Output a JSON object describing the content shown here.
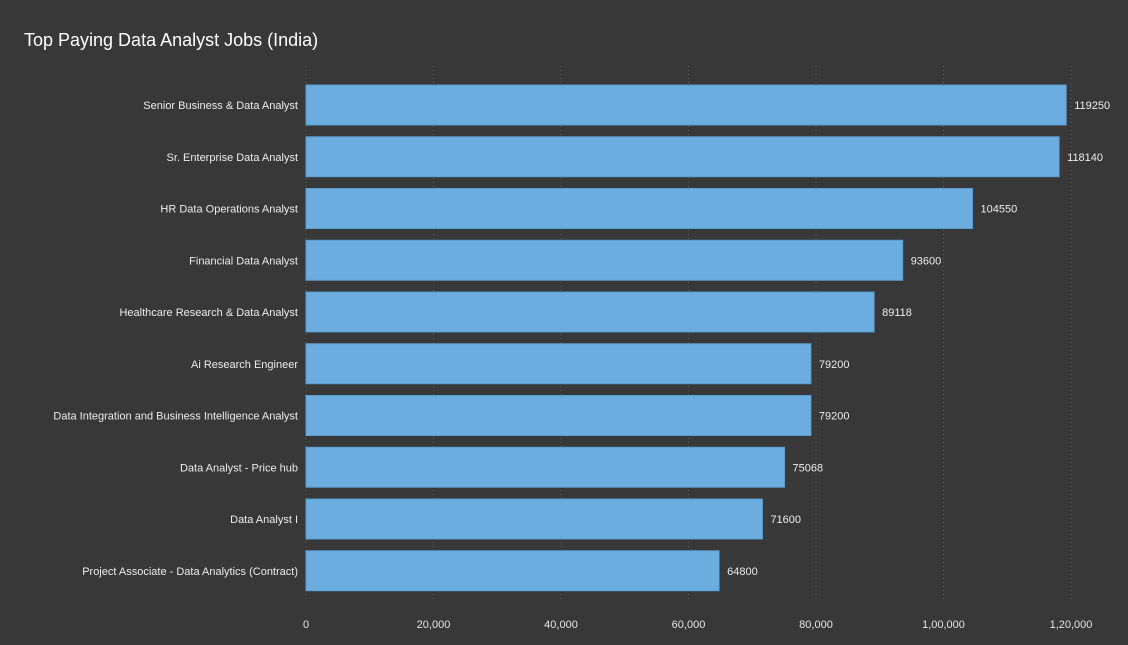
{
  "title": "Top Paying Data Analyst Jobs (India)",
  "colors": {
    "background": "#383838",
    "bar": "#6cade0",
    "bar_stroke": "#5a9bd0",
    "text": "#ececec",
    "inside_label": "#2a2a2a",
    "grid": "#5c5c5c"
  },
  "chart_data": {
    "type": "bar",
    "orientation": "horizontal",
    "title": "Top Paying Data Analyst Jobs (India)",
    "categories": [
      "Senior Business & Data Analyst",
      "Sr. Enterprise Data Analyst",
      "HR Data Operations Analyst",
      "Financial Data Analyst",
      "Healthcare Research & Data Analyst",
      "Ai Research Engineer",
      "Data Integration and Business Intelligence Analyst",
      "Data Analyst - Price hub",
      "Data Analyst I",
      "Project Associate - Data Analytics (Contract)"
    ],
    "values": [
      119250,
      118140,
      104550,
      93600,
      89118,
      79200,
      79200,
      75068,
      71600,
      64800
    ],
    "value_labels": [
      "119250",
      "118140",
      "104550",
      "93600",
      "89118",
      "79200",
      "79200",
      "75068",
      "71600",
      "64800"
    ],
    "xlim": [
      0,
      120000
    ],
    "xticks": [
      0,
      20000,
      40000,
      60000,
      80000,
      100000,
      120000
    ],
    "xtick_labels": [
      "0",
      "20,000",
      "40,000",
      "60,000",
      "80,000",
      "1,00,000",
      "1,20,000"
    ],
    "xlabel": "",
    "ylabel": "",
    "grid": "vertical dotted",
    "legend": "none"
  }
}
